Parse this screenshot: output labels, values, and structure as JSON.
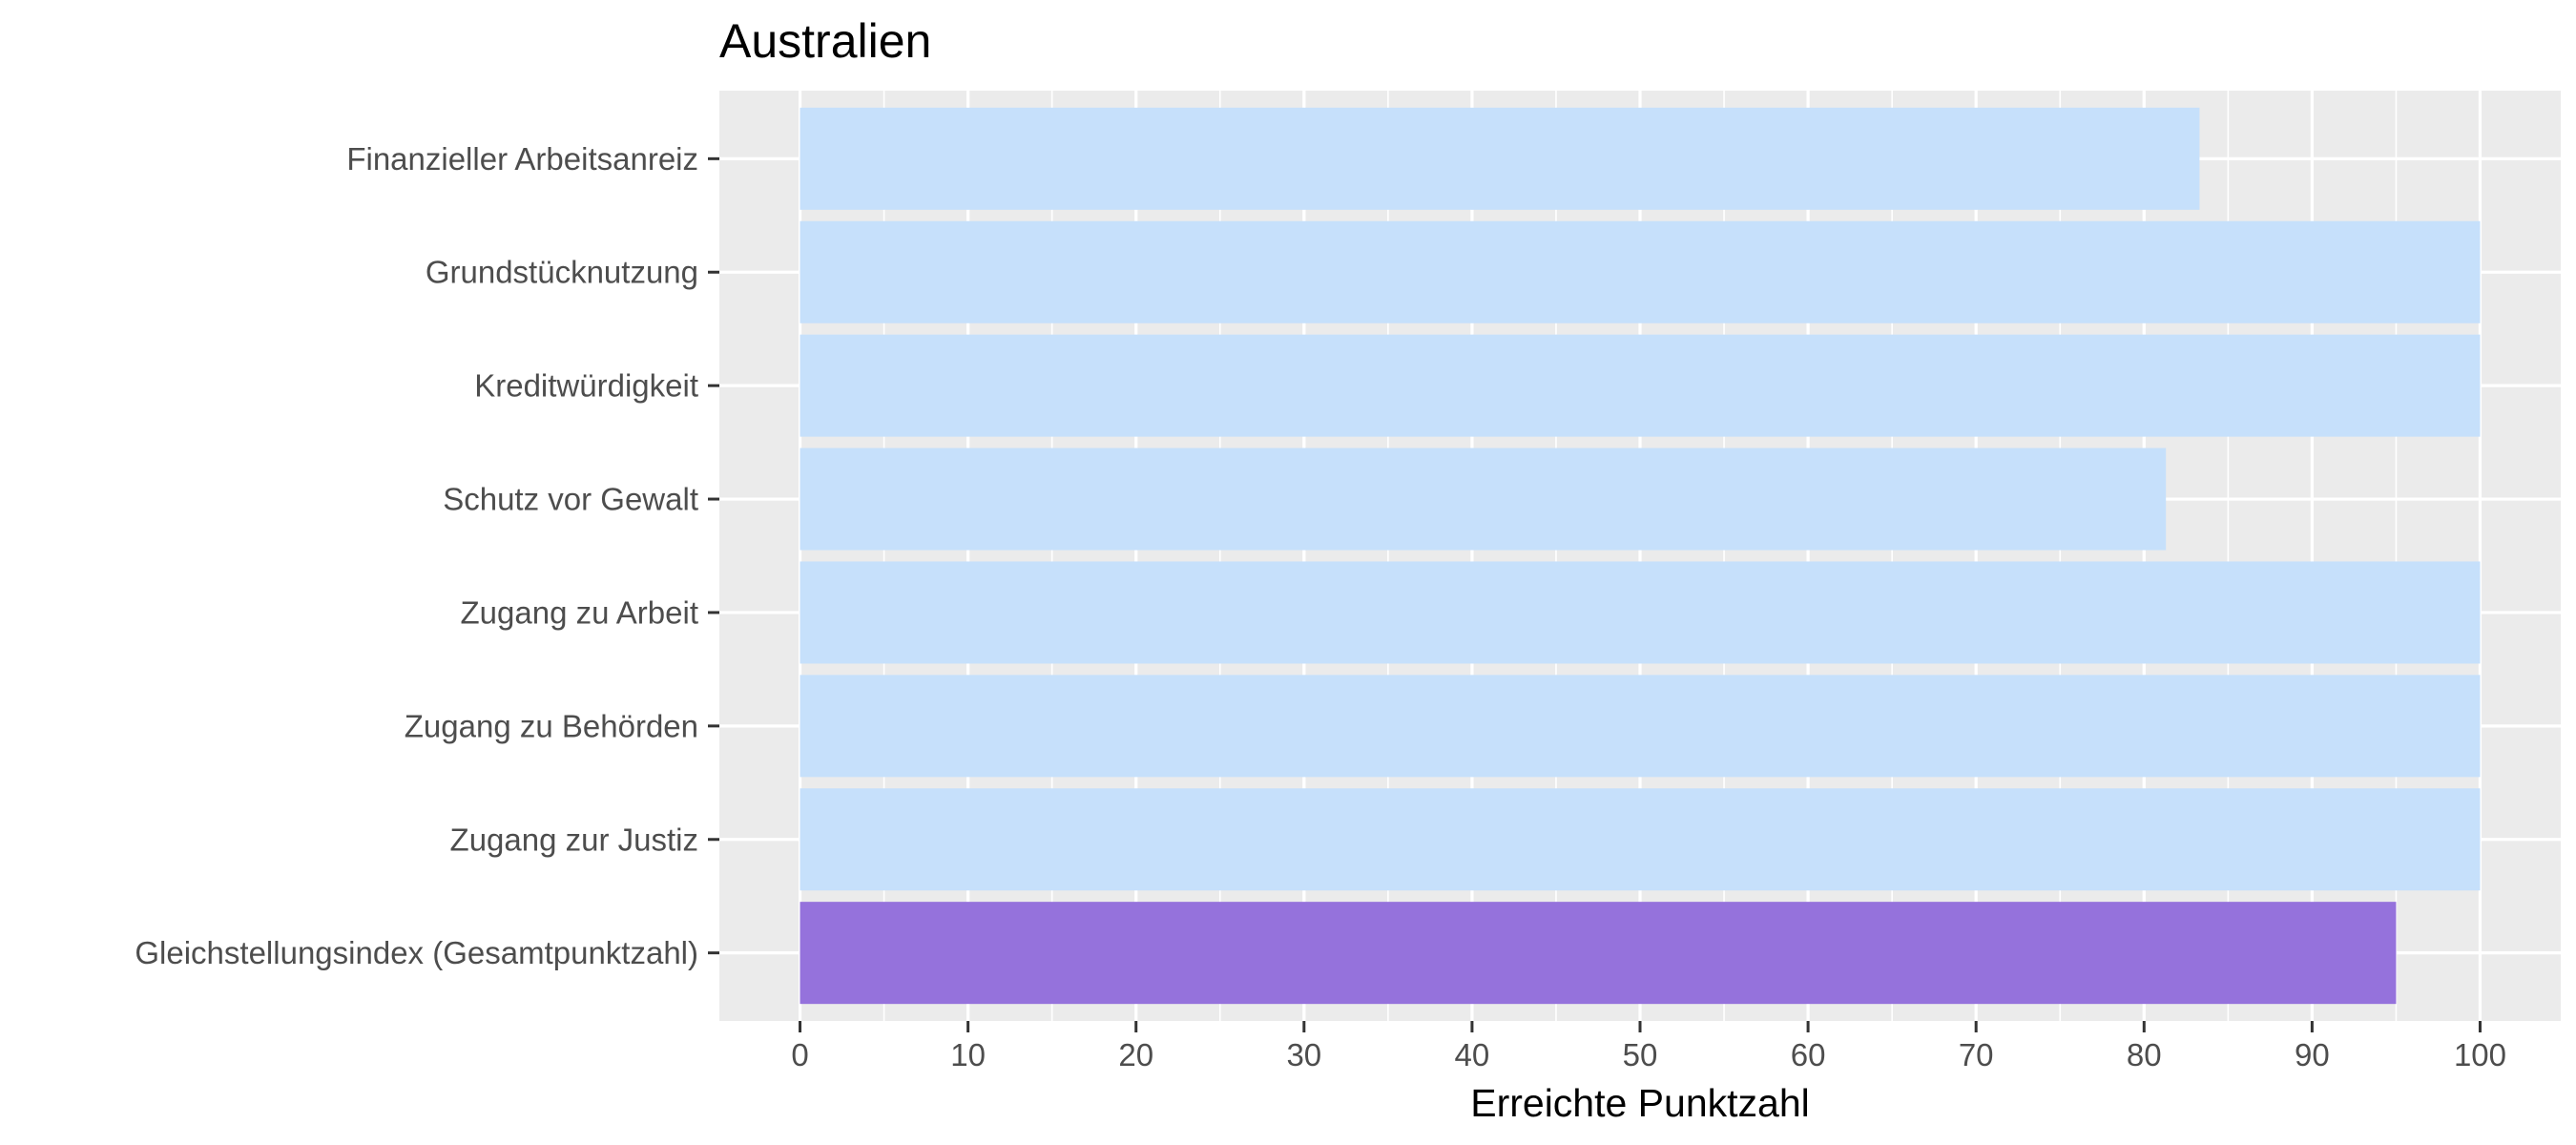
{
  "chart_data": {
    "type": "bar",
    "orientation": "horizontal",
    "title": "Australien",
    "xlabel": "Erreichte Punktzahl",
    "ylabel": "",
    "xlim": [
      -4.8,
      104.8
    ],
    "x_ticks": [
      0,
      10,
      20,
      30,
      40,
      50,
      60,
      70,
      80,
      90,
      100
    ],
    "grid": true,
    "legend": "none",
    "categories": [
      "Finanzieller Arbeitsanreiz",
      "Grundstücknutzung",
      "Kreditwürdigkeit",
      "Schutz vor Gewalt",
      "Zugang zu Arbeit",
      "Zugang zu Behörden",
      "Zugang zur Justiz",
      "Gleichstellungsindex (Gesamtpunktzahl)"
    ],
    "values": [
      83.3,
      100,
      100,
      81.3,
      100,
      100,
      100,
      95
    ],
    "bar_colors": [
      "#C6E0FB",
      "#C6E0FB",
      "#C6E0FB",
      "#C6E0FB",
      "#C6E0FB",
      "#C6E0FB",
      "#C6E0FB",
      "#9572DC"
    ],
    "panel_background": "#EBEBEB",
    "grid_color": "#FFFFFF"
  }
}
